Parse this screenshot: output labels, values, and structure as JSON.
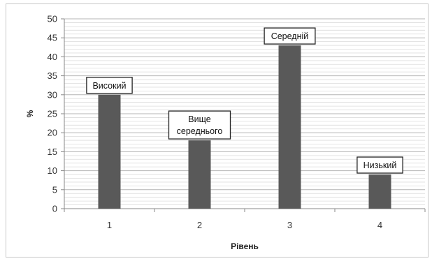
{
  "chart_data": {
    "type": "bar",
    "categories": [
      "1",
      "2",
      "3",
      "4"
    ],
    "values": [
      30,
      18,
      43,
      9
    ],
    "annotations": [
      [
        "Високий"
      ],
      [
        "Вище",
        "середнього"
      ],
      [
        "Середній"
      ],
      [
        "Низький"
      ]
    ],
    "title": "",
    "xlabel": "Рівень",
    "ylabel": "%",
    "ylim": [
      0,
      50
    ],
    "yticks": [
      0,
      5,
      10,
      15,
      20,
      25,
      30,
      35,
      40,
      45,
      50
    ],
    "grid": true,
    "legend": "none",
    "colors": {
      "bar": "#595959",
      "grid": "#b4b4b4",
      "axis": "#888888"
    }
  }
}
